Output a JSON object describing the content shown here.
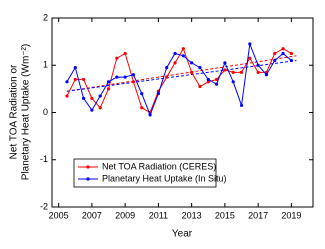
{
  "chart_data": {
    "type": "line",
    "xlabel": "Year",
    "ylabel": [
      "Net TOA Radiation or",
      "Planetary Heat Uptake (Wm⁻²)"
    ],
    "xlim": [
      2004.6,
      2020.3
    ],
    "xticks": [
      2005,
      2007,
      2009,
      2011,
      2013,
      2015,
      2017,
      2019
    ],
    "ylim": [
      -2,
      2
    ],
    "yticks": [
      -2,
      -1,
      0,
      1,
      2
    ],
    "grid": false,
    "legend": "lower left",
    "series": [
      {
        "name": "Net TOA Radiation (CERES)",
        "color": "#ff0000",
        "x": [
          2005.5,
          2006,
          2006.5,
          2007,
          2007.5,
          2008,
          2008.5,
          2009,
          2009.5,
          2010,
          2010.5,
          2011,
          2011.5,
          2012,
          2012.5,
          2013,
          2013.5,
          2014,
          2014.5,
          2015,
          2015.5,
          2016,
          2016.5,
          2017,
          2017.5,
          2018,
          2018.5,
          2019
        ],
        "values": [
          0.35,
          0.7,
          0.7,
          0.3,
          0.1,
          0.5,
          1.15,
          1.25,
          0.65,
          0.1,
          0.0,
          0.45,
          0.75,
          1.05,
          1.35,
          0.85,
          0.55,
          0.65,
          0.7,
          0.9,
          0.85,
          0.85,
          1.15,
          0.85,
          0.85,
          1.25,
          1.35,
          1.25
        ]
      },
      {
        "name": "Planetary Heat Uptake (In Situ)",
        "color": "#0000ff",
        "x": [
          2005.5,
          2006,
          2006.5,
          2007,
          2007.5,
          2008,
          2008.5,
          2009,
          2009.5,
          2010,
          2010.5,
          2011,
          2011.5,
          2012,
          2012.5,
          2013,
          2013.5,
          2014,
          2014.5,
          2015,
          2015.5,
          2016,
          2016.5,
          2017,
          2017.5,
          2018,
          2018.5,
          2019
        ],
        "values": [
          0.65,
          0.95,
          0.3,
          0.05,
          0.35,
          0.65,
          0.75,
          0.75,
          0.8,
          0.4,
          -0.05,
          0.4,
          0.95,
          1.25,
          1.2,
          1.05,
          0.95,
          0.7,
          0.6,
          1.05,
          0.65,
          0.15,
          1.45,
          1.0,
          0.8,
          1.1,
          1.25,
          1.1
        ]
      }
    ],
    "trendlines": [
      {
        "color": "#ff0000",
        "x": [
          2005.5,
          2019.3
        ],
        "values": [
          0.45,
          1.2
        ]
      },
      {
        "color": "#0000ff",
        "x": [
          2005.5,
          2019.3
        ],
        "values": [
          0.45,
          1.1
        ]
      }
    ]
  }
}
